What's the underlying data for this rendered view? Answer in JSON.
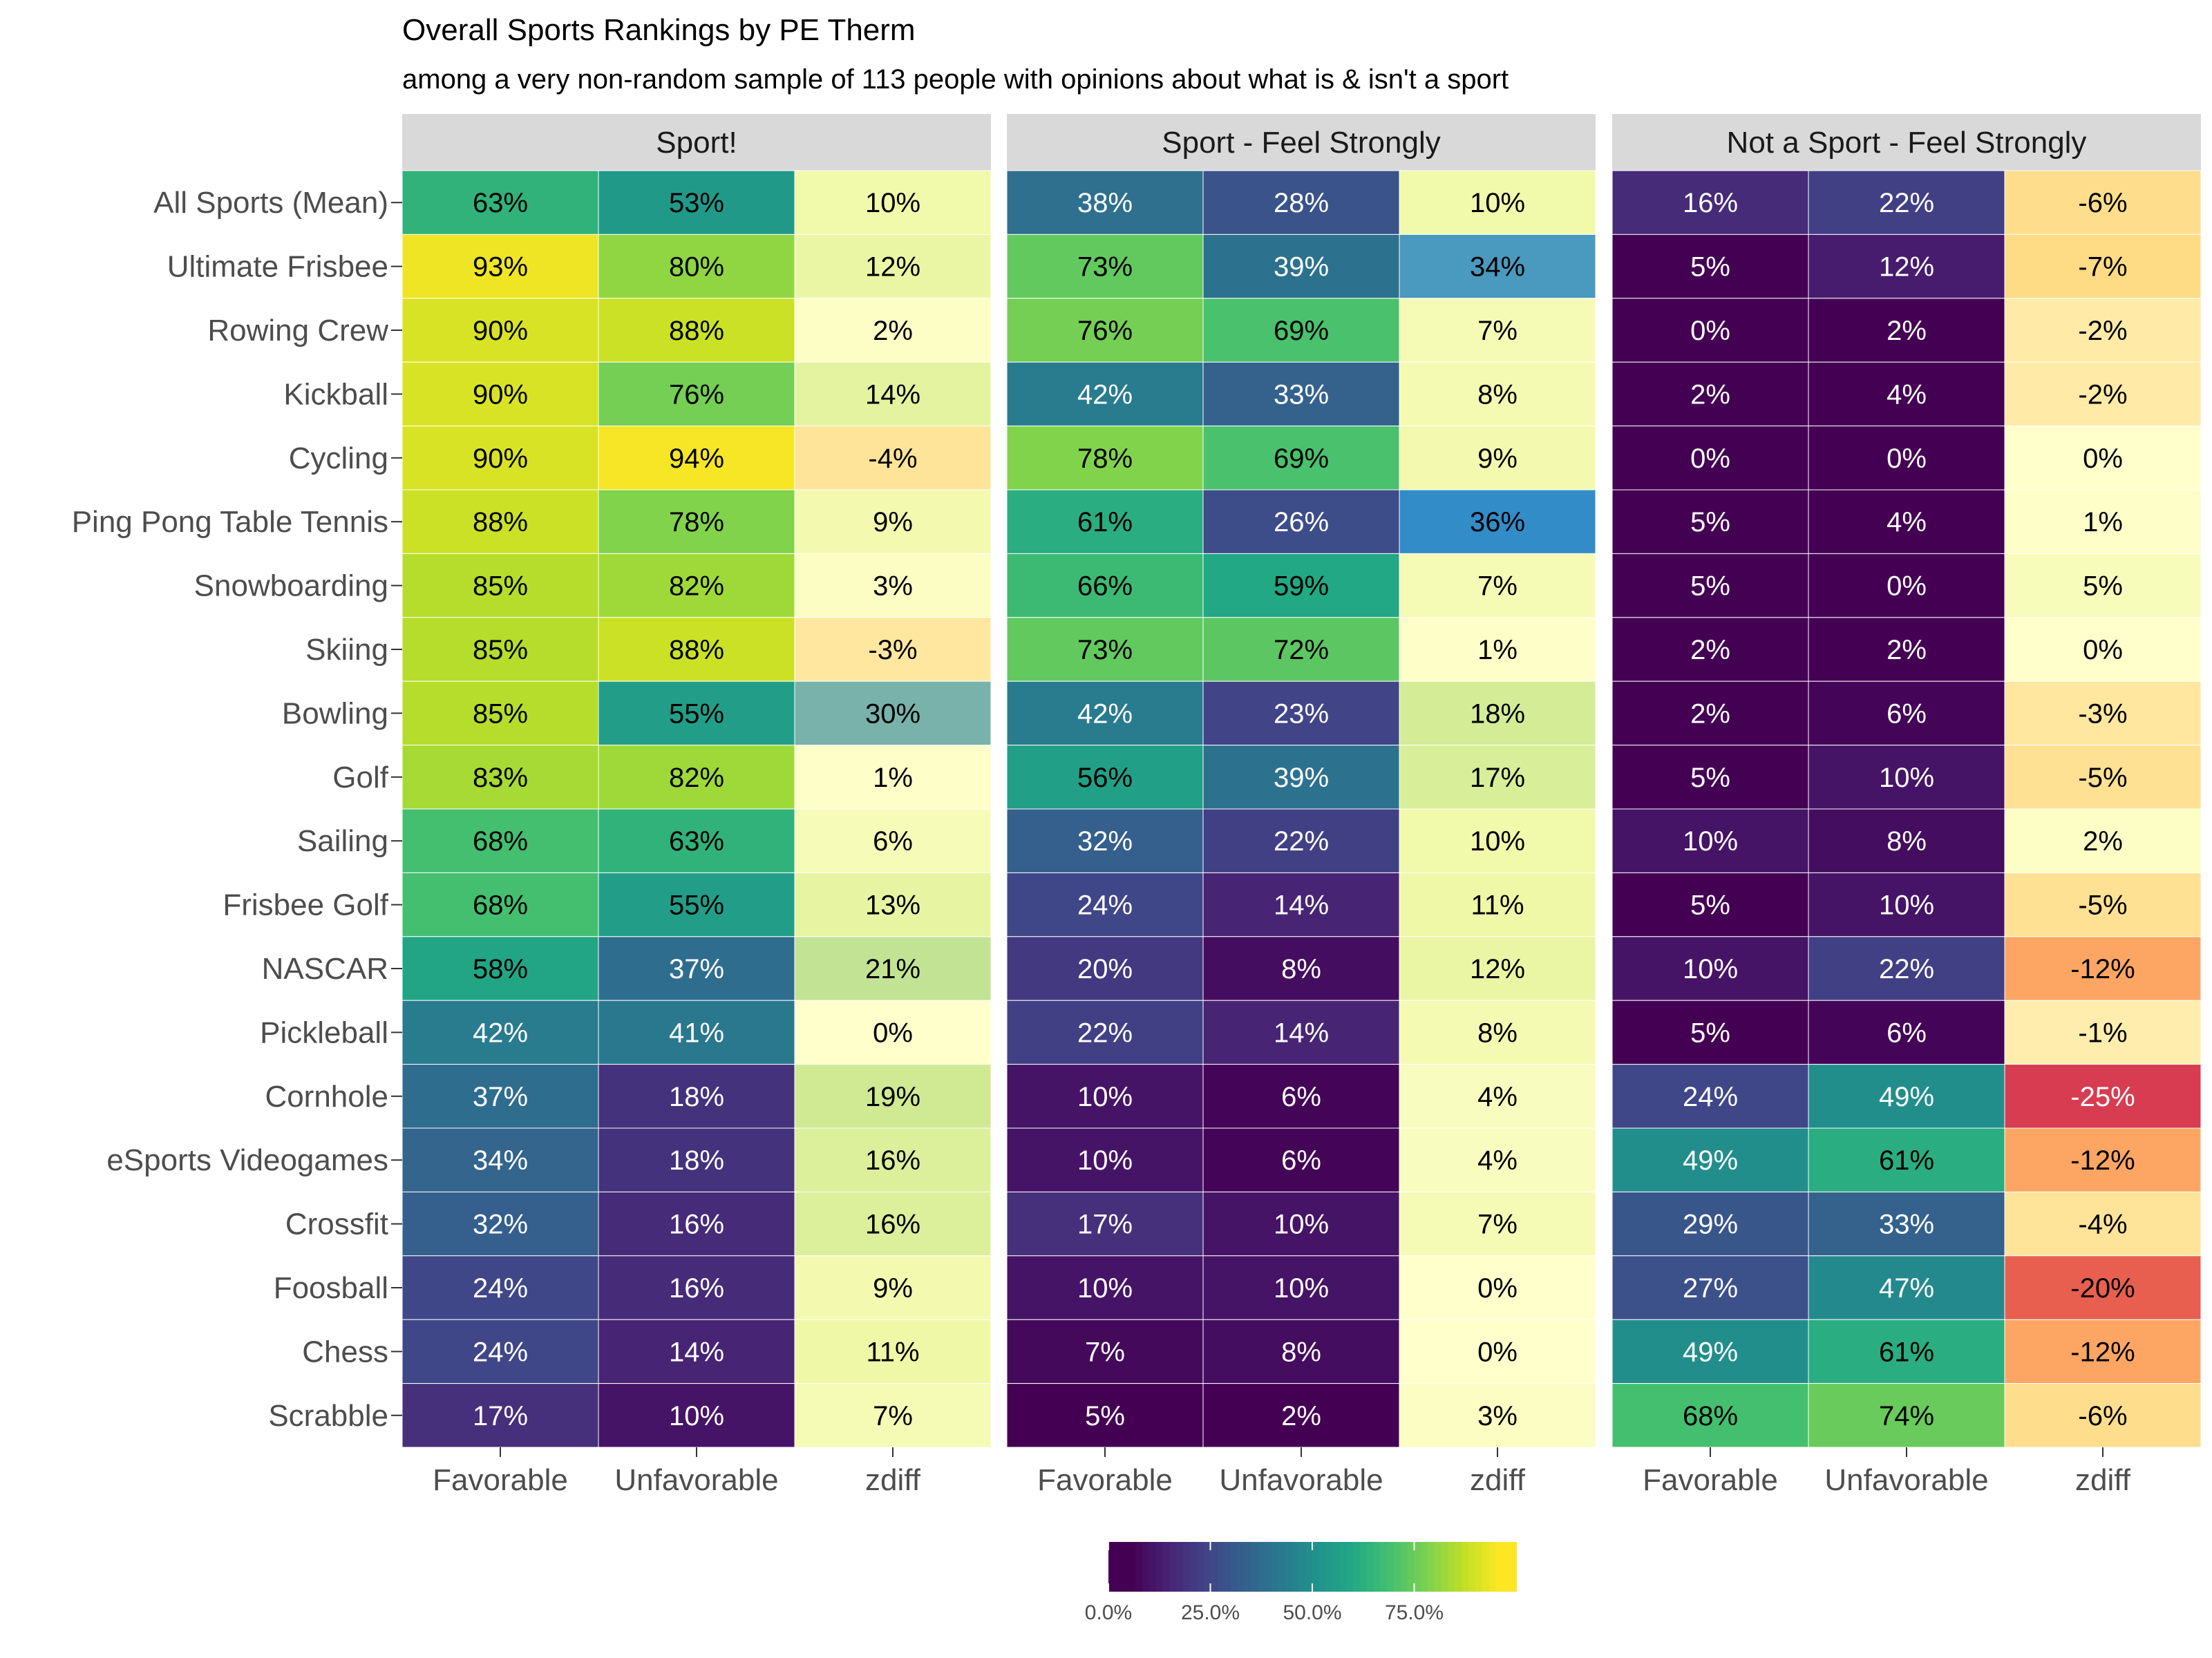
{
  "chart_data": {
    "type": "heatmap",
    "title": "Overall Sports Rankings by PE Therm",
    "subtitle": "among a very non-random sample of 113 people with opinions about what is & isn't a sport",
    "panels": [
      "Sport!",
      "Sport - Feel Strongly",
      "Not a Sport - Feel Strongly"
    ],
    "columns": [
      "Favorable",
      "Unfavorable",
      "zdiff"
    ],
    "rows": [
      "All Sports (Mean)",
      "Ultimate Frisbee",
      "Rowing Crew",
      "Kickball",
      "Cycling",
      "Ping Pong Table Tennis",
      "Snowboarding",
      "Skiing",
      "Bowling",
      "Golf",
      "Sailing",
      "Frisbee Golf",
      "NASCAR",
      "Pickleball",
      "Cornhole",
      "eSports Videogames",
      "Crossfit",
      "Foosball",
      "Chess",
      "Scrabble"
    ],
    "values": [
      [
        [
          63,
          53,
          10
        ],
        [
          38,
          28,
          10
        ],
        [
          16,
          22,
          -6
        ]
      ],
      [
        [
          93,
          80,
          12
        ],
        [
          73,
          39,
          34
        ],
        [
          5,
          12,
          -7
        ]
      ],
      [
        [
          90,
          88,
          2
        ],
        [
          76,
          69,
          7
        ],
        [
          0,
          2,
          -2
        ]
      ],
      [
        [
          90,
          76,
          14
        ],
        [
          42,
          33,
          8
        ],
        [
          2,
          4,
          -2
        ]
      ],
      [
        [
          90,
          94,
          -4
        ],
        [
          78,
          69,
          9
        ],
        [
          0,
          0,
          0
        ]
      ],
      [
        [
          88,
          78,
          9
        ],
        [
          61,
          26,
          36
        ],
        [
          5,
          4,
          1
        ]
      ],
      [
        [
          85,
          82,
          3
        ],
        [
          66,
          59,
          7
        ],
        [
          5,
          0,
          5
        ]
      ],
      [
        [
          85,
          88,
          -3
        ],
        [
          73,
          72,
          1
        ],
        [
          2,
          2,
          0
        ]
      ],
      [
        [
          85,
          55,
          30
        ],
        [
          42,
          23,
          18
        ],
        [
          2,
          6,
          -3
        ]
      ],
      [
        [
          83,
          82,
          1
        ],
        [
          56,
          39,
          17
        ],
        [
          5,
          10,
          -5
        ]
      ],
      [
        [
          68,
          63,
          6
        ],
        [
          32,
          22,
          10
        ],
        [
          10,
          8,
          2
        ]
      ],
      [
        [
          68,
          55,
          13
        ],
        [
          24,
          14,
          11
        ],
        [
          5,
          10,
          -5
        ]
      ],
      [
        [
          58,
          37,
          21
        ],
        [
          20,
          8,
          12
        ],
        [
          10,
          22,
          -12
        ]
      ],
      [
        [
          42,
          41,
          0
        ],
        [
          22,
          14,
          8
        ],
        [
          5,
          6,
          -1
        ]
      ],
      [
        [
          37,
          18,
          19
        ],
        [
          10,
          6,
          4
        ],
        [
          24,
          49,
          -25
        ]
      ],
      [
        [
          34,
          18,
          16
        ],
        [
          10,
          6,
          4
        ],
        [
          49,
          61,
          -12
        ]
      ],
      [
        [
          32,
          16,
          16
        ],
        [
          17,
          10,
          7
        ],
        [
          29,
          33,
          -4
        ]
      ],
      [
        [
          24,
          16,
          9
        ],
        [
          10,
          10,
          0
        ],
        [
          27,
          47,
          -20
        ]
      ],
      [
        [
          24,
          14,
          11
        ],
        [
          7,
          8,
          0
        ],
        [
          49,
          61,
          -12
        ]
      ],
      [
        [
          17,
          10,
          7
        ],
        [
          5,
          2,
          3
        ],
        [
          68,
          74,
          -6
        ]
      ]
    ],
    "value_suffix": "%",
    "legend": {
      "type": "colorbar",
      "range": [
        0,
        100
      ],
      "ticks": [
        "0.0%",
        "25.0%",
        "50.0%",
        "75.0%"
      ],
      "tick_values": [
        0,
        25,
        50,
        75
      ],
      "placement": "bottom"
    },
    "colors": {
      "fill_scale": "viridis",
      "zdiff_scale": "diverging red-yellow-blue",
      "strip_background": "#d9d9d9",
      "grid_line": "#ffffff"
    }
  }
}
